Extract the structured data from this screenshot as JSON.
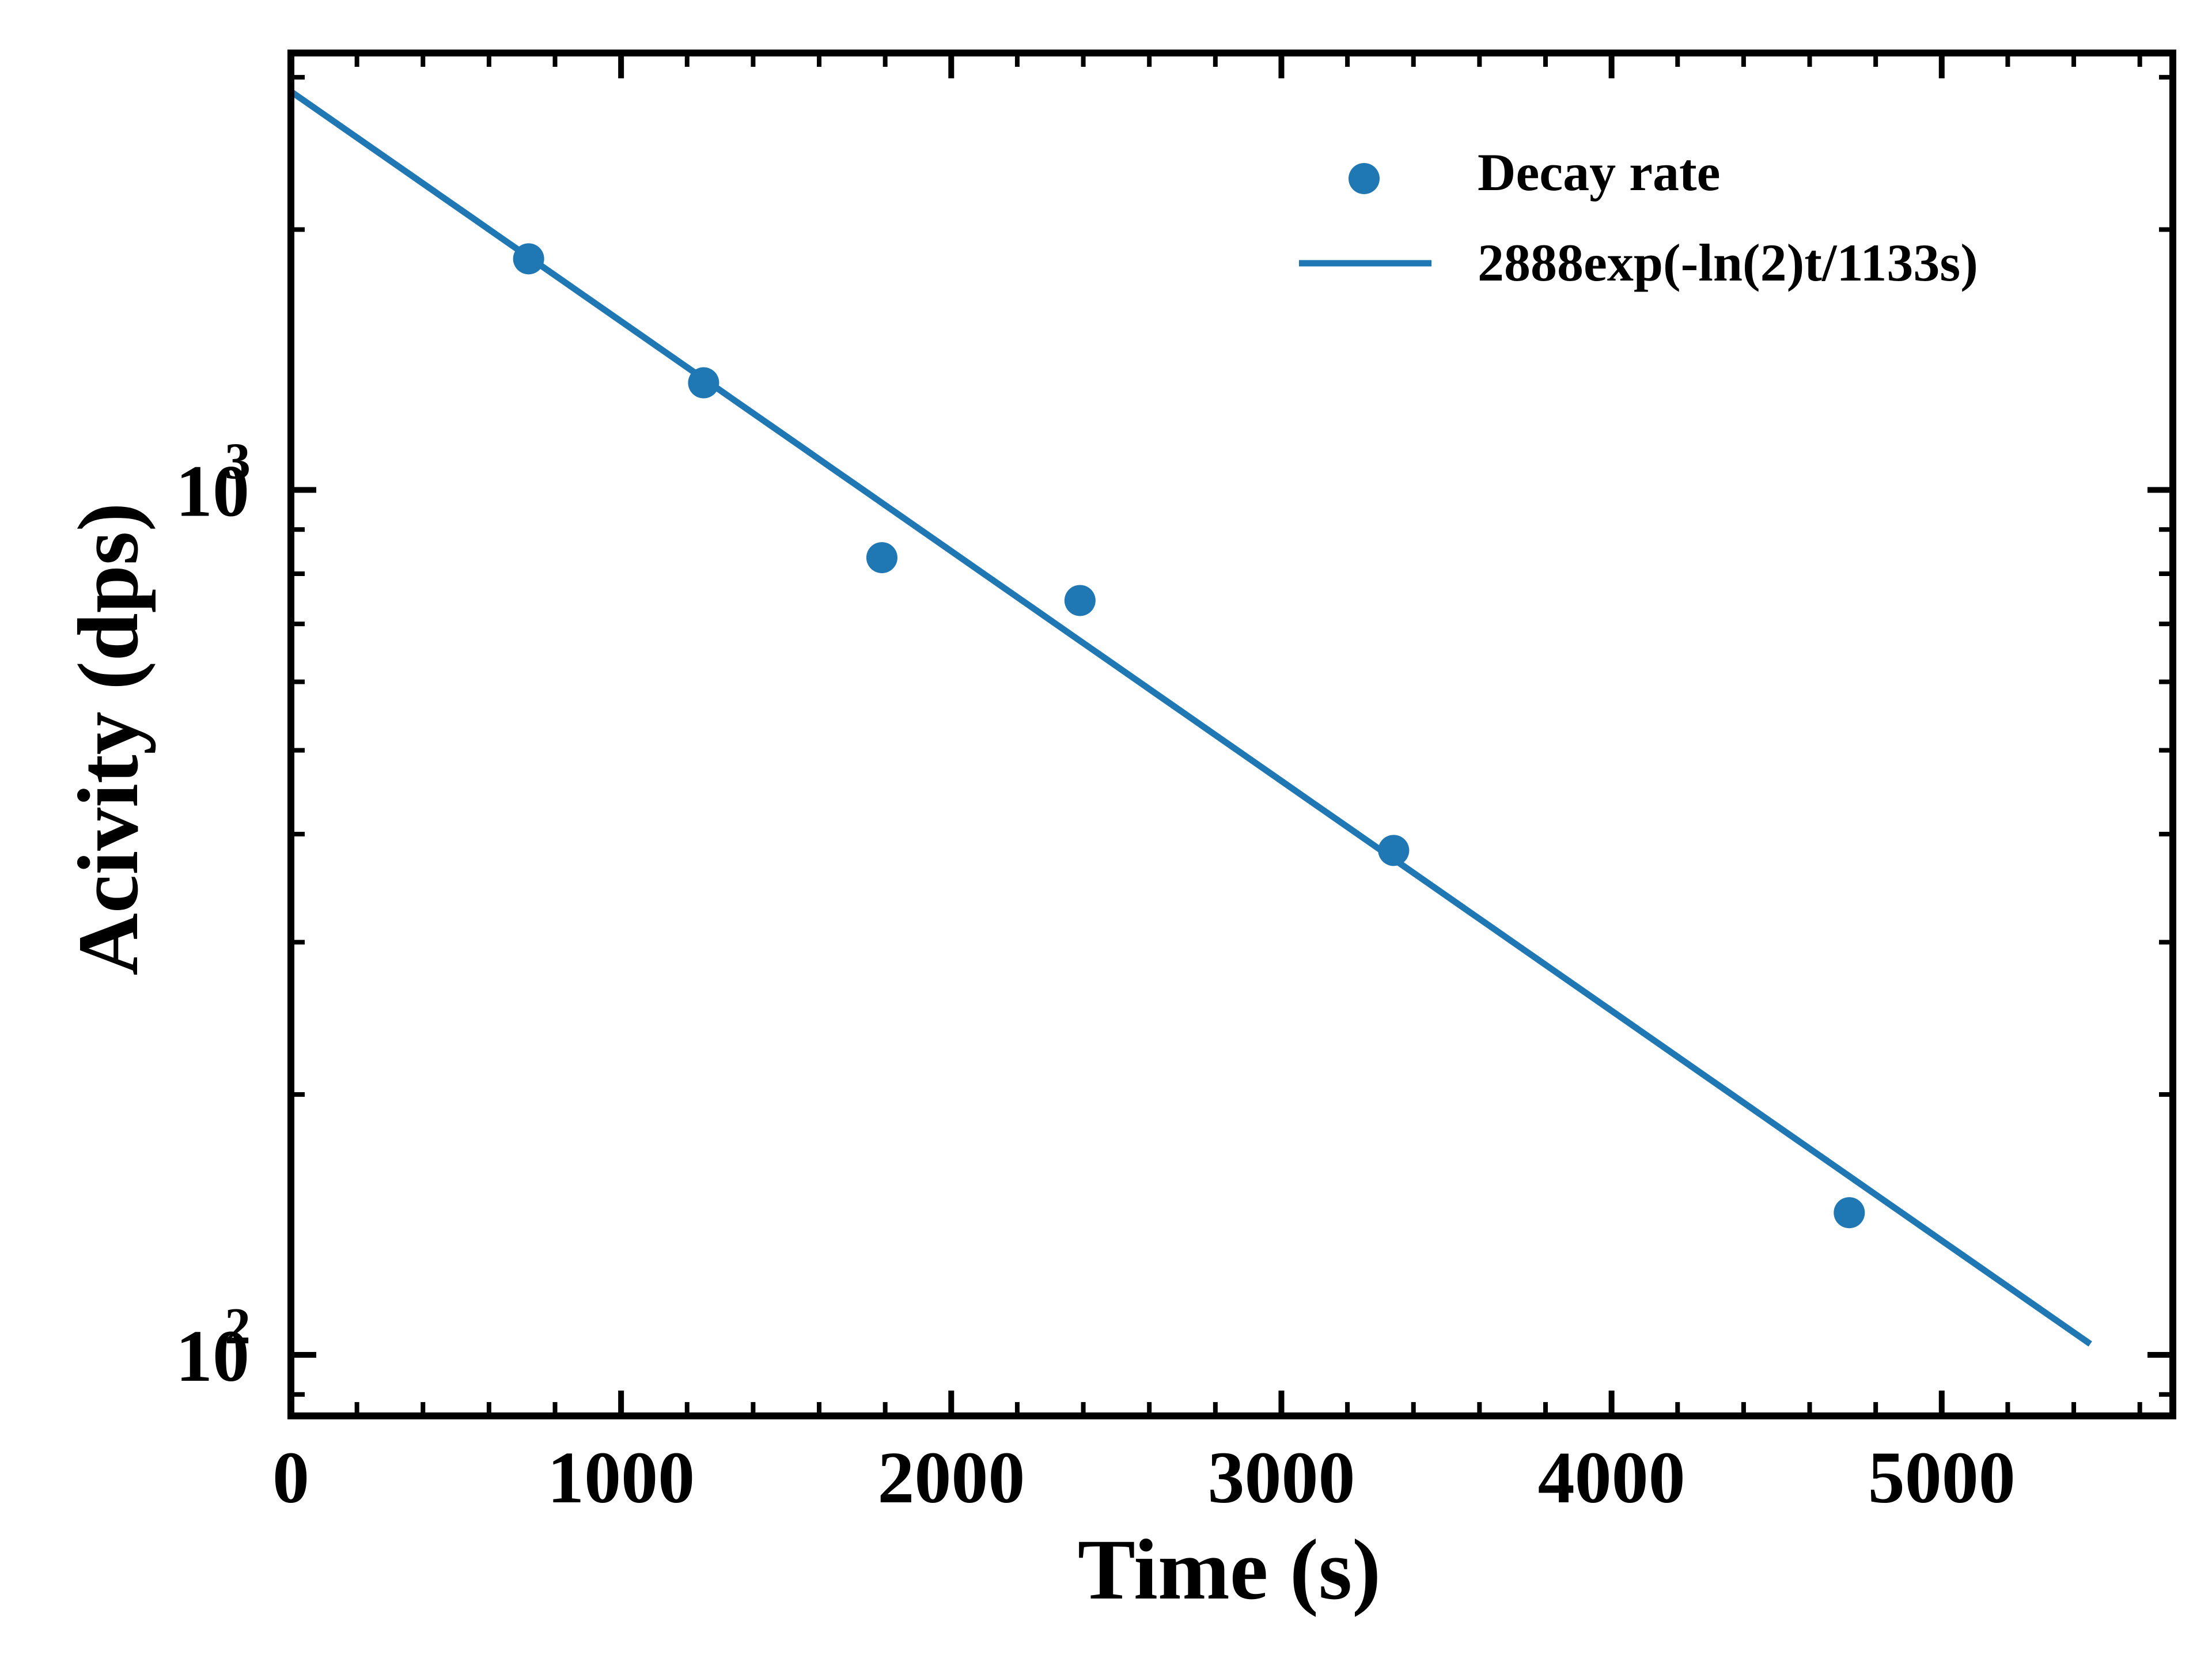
{
  "chart_data": {
    "type": "scatter",
    "xlabel": "Time (s)",
    "ylabel": "Acivity (dps)",
    "yscale": "log",
    "xlim": [
      0,
      5700
    ],
    "ylim": [
      85,
      3200
    ],
    "x_ticks": [
      "0",
      "1000",
      "2000",
      "3000",
      "4000",
      "5000"
    ],
    "x_tick_values": [
      0,
      1000,
      2000,
      3000,
      4000,
      5000
    ],
    "y_ticks": [
      {
        "value": 100,
        "base": "10",
        "exp": "2"
      },
      {
        "value": 1000,
        "base": "10",
        "exp": "3"
      }
    ],
    "grid": false,
    "legend_position": "top-right",
    "series": [
      {
        "name": "Decay rate",
        "kind": "scatter",
        "color": "#1f77b4",
        "x": [
          720,
          1250,
          1790,
          2390,
          3340,
          4720
        ],
        "y": [
          1850,
          1330,
          835,
          745,
          383,
          146
        ]
      },
      {
        "name": "2888exp(-ln(2)t/1133s)",
        "kind": "line",
        "color": "#1f77b4",
        "amplitude": 2888,
        "half_life": 1133,
        "x_range": [
          0,
          5450
        ]
      }
    ]
  }
}
